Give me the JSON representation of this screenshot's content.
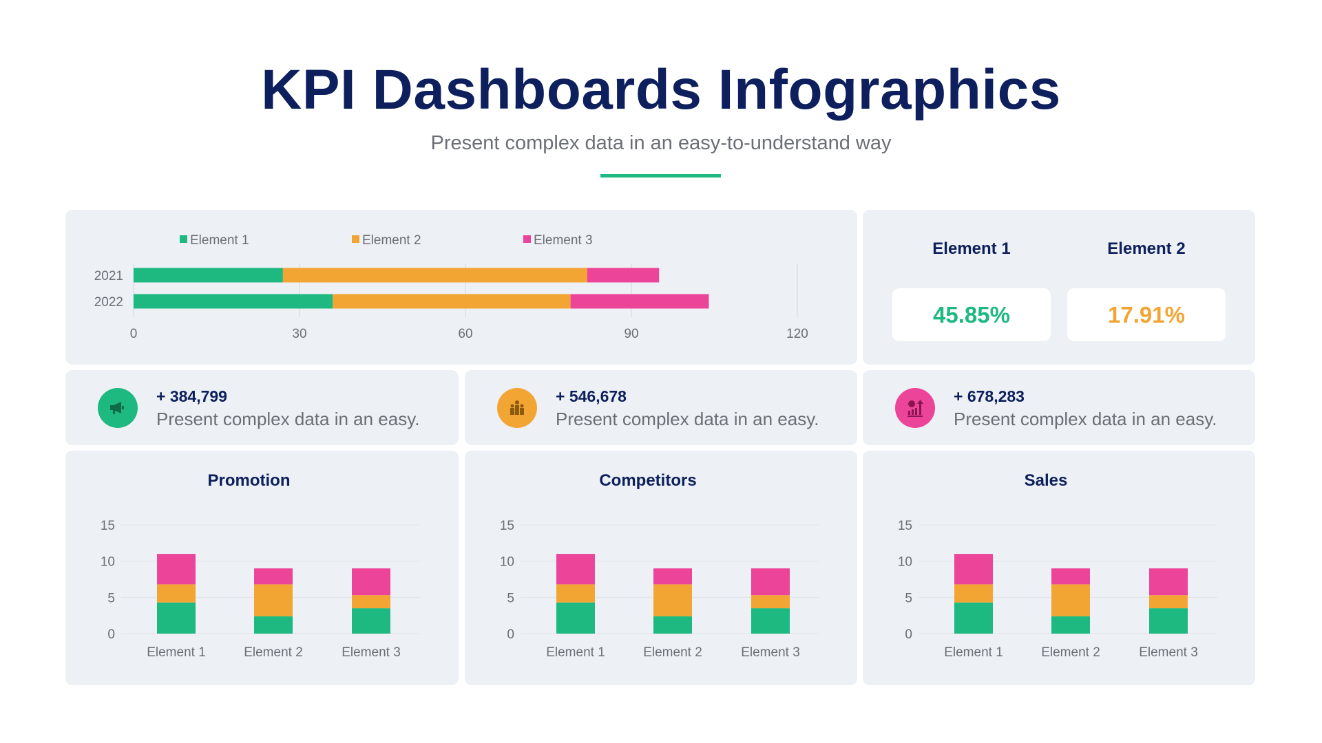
{
  "header": {
    "title": "KPI Dashboards Infographics",
    "subtitle": "Present complex data in an easy-to-understand way"
  },
  "colors": {
    "element1": "#1db980",
    "element2": "#f3a533",
    "element3": "#ec4499",
    "navy": "#0d1f5c",
    "panel": "#edf0f4"
  },
  "kpis": [
    {
      "label": "Element 1",
      "value": "45.85%",
      "color": "#1db980"
    },
    {
      "label": "Element 2",
      "value": "17.91%",
      "color": "#f3a533"
    }
  ],
  "cards": [
    {
      "icon": "megaphone-icon",
      "color": "#1db980",
      "value": "+ 384,799",
      "text": "Present complex data in an easy."
    },
    {
      "icon": "competitors-icon",
      "color": "#f3a533",
      "value": "+ 546,678",
      "text": "Present complex data in an easy."
    },
    {
      "icon": "money-growth-icon",
      "color": "#ec4499",
      "value": "+ 678,283",
      "text": "Present complex data in an easy."
    }
  ],
  "chart_data": [
    {
      "type": "bar",
      "orientation": "horizontal",
      "stacked": true,
      "categories": [
        "2021",
        "2022"
      ],
      "series": [
        {
          "name": "Element 1",
          "values": [
            27,
            36
          ]
        },
        {
          "name": "Element 2",
          "values": [
            55,
            43
          ]
        },
        {
          "name": "Element 3",
          "values": [
            13,
            25
          ]
        }
      ],
      "xlim": [
        0,
        120
      ],
      "xticks": [
        "0",
        "30",
        "60",
        "90",
        "120"
      ],
      "legend": "top",
      "grid": true
    },
    {
      "type": "bar",
      "stacked": true,
      "title": "Promotion",
      "categories": [
        "Element 1",
        "Element 2",
        "Element 3"
      ],
      "series": [
        {
          "values": [
            4.3,
            2.4,
            3.5
          ]
        },
        {
          "values": [
            2.5,
            4.4,
            1.8
          ]
        },
        {
          "values": [
            4.2,
            2.2,
            3.7
          ]
        }
      ],
      "ylim": [
        0,
        15
      ],
      "yticks": [
        "0",
        "5",
        "10",
        "15"
      ],
      "grid": true
    },
    {
      "type": "bar",
      "stacked": true,
      "title": "Competitors",
      "categories": [
        "Element 1",
        "Element 2",
        "Element 3"
      ],
      "series": [
        {
          "values": [
            4.3,
            2.4,
            3.5
          ]
        },
        {
          "values": [
            2.5,
            4.4,
            1.8
          ]
        },
        {
          "values": [
            4.2,
            2.2,
            3.7
          ]
        }
      ],
      "ylim": [
        0,
        15
      ],
      "yticks": [
        "0",
        "5",
        "10",
        "15"
      ],
      "grid": true
    },
    {
      "type": "bar",
      "stacked": true,
      "title": "Sales",
      "categories": [
        "Element 1",
        "Element 2",
        "Element 3"
      ],
      "series": [
        {
          "values": [
            4.3,
            2.4,
            3.5
          ]
        },
        {
          "values": [
            2.5,
            4.4,
            1.8
          ]
        },
        {
          "values": [
            4.2,
            2.2,
            3.7
          ]
        }
      ],
      "ylim": [
        0,
        15
      ],
      "yticks": [
        "0",
        "5",
        "10",
        "15"
      ],
      "grid": true
    }
  ]
}
